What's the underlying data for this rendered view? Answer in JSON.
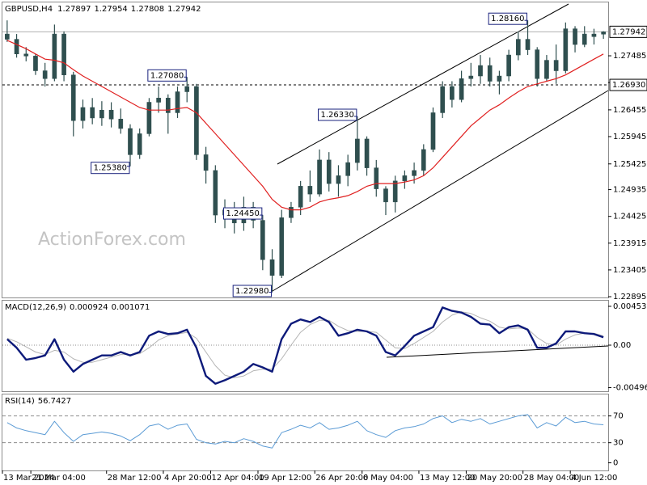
{
  "chart_data": [
    {
      "type": "candlestick",
      "title": "GBPUSD,H4",
      "watermark": "ActionForex.com",
      "color": "#2f4f4f",
      "categories": [
        "13 Mar 2024",
        null,
        null,
        "21 Mar 04:00",
        null,
        null,
        null,
        null,
        null,
        null,
        null,
        "28 Mar 12:00",
        null,
        null,
        null,
        null,
        null,
        "4 Apr 20:00",
        null,
        null,
        null,
        null,
        "12 Apr 04:00",
        null,
        null,
        null,
        null,
        "19 Apr 12:00",
        null,
        null,
        null,
        null,
        null,
        "26 Apr 20:00",
        null,
        null,
        null,
        null,
        "6 May 04:00",
        null,
        null,
        null,
        null,
        null,
        "13 May 12:00",
        null,
        null,
        null,
        null,
        "20 May 20:00",
        null,
        null,
        null,
        null,
        null,
        "28 May 04:00",
        null,
        null,
        null,
        null,
        "4 Jun 12:00",
        null,
        null,
        null
      ],
      "open": [
        1.279,
        1.278,
        1.2752,
        1.2748,
        1.272,
        1.2705,
        1.279,
        1.2712,
        1.2625,
        1.265,
        1.263,
        1.2645,
        1.2628,
        1.261,
        1.256,
        1.26,
        1.266,
        1.2668,
        1.264,
        1.268,
        1.269,
        1.256,
        1.253,
        1.2445,
        1.2455,
        1.243,
        1.246,
        1.2435,
        1.236,
        1.233,
        1.244,
        1.246,
        1.25,
        1.2485,
        1.255,
        1.2505,
        1.252,
        1.2545,
        1.259,
        1.2535,
        1.2495,
        1.247,
        1.251,
        1.252,
        1.253,
        1.257,
        1.264,
        1.269,
        1.2665,
        1.2705,
        1.271,
        1.273,
        1.27,
        1.271,
        1.275,
        1.278,
        1.276,
        1.2705,
        1.274,
        1.272,
        1.28,
        1.277,
        1.279,
        1.27897
      ],
      "high": [
        1.2816,
        1.279,
        1.2765,
        1.2752,
        1.2735,
        1.2808,
        1.2795,
        1.2718,
        1.2665,
        1.2668,
        1.2662,
        1.266,
        1.2648,
        1.2618,
        1.261,
        1.2668,
        1.269,
        1.2675,
        1.269,
        1.2708,
        1.2695,
        1.2575,
        1.254,
        1.2475,
        1.247,
        1.248,
        1.247,
        1.2445,
        1.238,
        1.2455,
        1.247,
        1.251,
        1.253,
        1.257,
        1.2565,
        1.254,
        1.256,
        1.2633,
        1.2595,
        1.255,
        1.25,
        1.252,
        1.253,
        1.2545,
        1.258,
        1.265,
        1.27,
        1.27,
        1.272,
        1.2735,
        1.275,
        1.2745,
        1.272,
        1.276,
        1.2795,
        1.2816,
        1.2765,
        1.275,
        1.277,
        1.2812,
        1.2805,
        1.2805,
        1.28,
        1.27954
      ],
      "low": [
        1.2775,
        1.2745,
        1.2738,
        1.2712,
        1.269,
        1.27,
        1.27,
        1.2595,
        1.261,
        1.2618,
        1.2615,
        1.2612,
        1.26,
        1.2538,
        1.2552,
        1.2595,
        1.264,
        1.26,
        1.263,
        1.266,
        1.255,
        1.2505,
        1.243,
        1.242,
        1.241,
        1.2415,
        1.242,
        1.234,
        1.2298,
        1.2325,
        1.243,
        1.2445,
        1.247,
        1.248,
        1.249,
        1.248,
        1.25,
        1.253,
        1.252,
        1.248,
        1.2445,
        1.245,
        1.2495,
        1.2505,
        1.252,
        1.2565,
        1.263,
        1.265,
        1.266,
        1.269,
        1.2695,
        1.269,
        1.2675,
        1.27,
        1.274,
        1.275,
        1.269,
        1.27,
        1.2695,
        1.2715,
        1.2755,
        1.2765,
        1.277,
        1.27808
      ],
      "close": [
        1.278,
        1.2752,
        1.2748,
        1.272,
        1.2705,
        1.279,
        1.2712,
        1.2625,
        1.265,
        1.263,
        1.2645,
        1.2628,
        1.261,
        1.256,
        1.26,
        1.266,
        1.2668,
        1.264,
        1.268,
        1.269,
        1.256,
        1.253,
        1.2445,
        1.2455,
        1.243,
        1.246,
        1.2435,
        1.236,
        1.233,
        1.244,
        1.246,
        1.25,
        1.2485,
        1.255,
        1.2505,
        1.252,
        1.2545,
        1.259,
        1.2535,
        1.2495,
        1.247,
        1.251,
        1.252,
        1.253,
        1.257,
        1.264,
        1.269,
        1.2665,
        1.2705,
        1.271,
        1.273,
        1.27,
        1.271,
        1.275,
        1.278,
        1.276,
        1.2705,
        1.274,
        1.272,
        1.28,
        1.277,
        1.279,
        1.2785,
        1.27942
      ],
      "moving_average": {
        "color": "#e02020",
        "values": [
          1.2778,
          1.277,
          1.2762,
          1.2752,
          1.2742,
          1.274,
          1.2735,
          1.2722,
          1.271,
          1.27,
          1.269,
          1.268,
          1.267,
          1.266,
          1.265,
          1.2645,
          1.2645,
          1.2645,
          1.2648,
          1.265,
          1.264,
          1.262,
          1.26,
          1.258,
          1.256,
          1.254,
          1.252,
          1.25,
          1.2475,
          1.246,
          1.2455,
          1.2455,
          1.246,
          1.247,
          1.2475,
          1.2478,
          1.2482,
          1.249,
          1.25,
          1.2505,
          1.2505,
          1.2505,
          1.2508,
          1.2512,
          1.252,
          1.2535,
          1.2555,
          1.2575,
          1.2595,
          1.2615,
          1.263,
          1.2645,
          1.2655,
          1.2668,
          1.268,
          1.269,
          1.2695,
          1.27,
          1.2705,
          1.2712,
          1.2722,
          1.2732,
          1.2742,
          1.2752
        ]
      },
      "levels": [
        {
          "value": 1.2693,
          "label": "1.26930"
        }
      ],
      "annotations": [
        {
          "value": 1.2816,
          "label": "1.28160"
        },
        {
          "value": 1.2708,
          "label": "1.27080"
        },
        {
          "value": 1.2538,
          "label": "1.25380"
        },
        {
          "value": 1.2633,
          "label": "1.26330"
        },
        {
          "value": 1.2445,
          "label": "1.24450"
        },
        {
          "value": 1.2298,
          "label": "1.22980"
        }
      ],
      "ylim": [
        1.2288,
        1.28502
      ],
      "yticks": [
        1.27485,
        1.26975,
        1.26455,
        1.25945,
        1.25425,
        1.24935,
        1.24425,
        1.23915,
        1.23405,
        1.22895
      ]
    },
    {
      "type": "line",
      "title": "MACD(12,26,9)",
      "series": [
        {
          "color": "#0d1a7a",
          "values": [
            0.0007,
            -0.0003,
            -0.0017,
            -0.0015,
            -0.0012,
            0.0007,
            -0.0017,
            -0.0031,
            -0.0022,
            -0.0017,
            -0.0012,
            -0.0012,
            -0.0008,
            -0.0012,
            -0.0008,
            0.0011,
            0.0016,
            0.0013,
            0.0014,
            0.0018,
            -0.0003,
            -0.0036,
            -0.0045,
            -0.0041,
            -0.0036,
            -0.0031,
            -0.0022,
            -0.0026,
            -0.0031,
            0.0007,
            0.0025,
            0.003,
            0.0027,
            0.0033,
            0.0027,
            0.0011,
            0.0014,
            0.0018,
            0.0016,
            0.0011,
            -0.0008,
            -0.0012,
            -0.0001,
            0.0011,
            0.0016,
            0.0021,
            0.0044,
            0.004,
            0.0038,
            0.0033,
            0.0025,
            0.0024,
            0.0014,
            0.0021,
            0.0023,
            0.0018,
            -0.0003,
            -0.0003,
            0.0002,
            0.0016,
            0.0016,
            0.0014,
            0.0013,
            0.000924
          ]
        },
        {
          "color": "#b4b4b4",
          "values": [
            0.0008,
            0.0004,
            -0.0002,
            -0.0008,
            -0.0011,
            -0.0006,
            -0.0008,
            -0.0016,
            -0.002,
            -0.002,
            -0.0017,
            -0.0014,
            -0.0011,
            -0.0011,
            -0.001,
            -0.0003,
            0.0006,
            0.0011,
            0.0013,
            0.0015,
            0.0008,
            -0.0008,
            -0.0024,
            -0.0035,
            -0.0038,
            -0.0036,
            -0.003,
            -0.0028,
            -0.0028,
            -0.0016,
            0,
            0.0015,
            0.0024,
            0.0029,
            0.0029,
            0.0022,
            0.0017,
            0.0016,
            0.0016,
            0.0015,
            0.0006,
            -0.0003,
            -0.0004,
            0.0002,
            0.0009,
            0.0016,
            0.0027,
            0.0035,
            0.0039,
            0.0037,
            0.0032,
            0.0028,
            0.0021,
            0.0019,
            0.002,
            0.0019,
            0.0009,
            0.0002,
            0,
            0.0007,
            0.0012,
            0.0014,
            0.0014,
            0.001071
          ]
        }
      ],
      "reference_lines": [
        0
      ],
      "ylim": [
        -0.00538,
        0.00519
      ],
      "yticks": [
        0.004533,
        {
          "value": 0,
          "label": "0.00"
        },
        -0.00496
      ]
    },
    {
      "type": "line",
      "title": "RSI(14)",
      "series": [
        {
          "color": "#5b9bd5",
          "values": [
            60,
            52,
            48,
            45,
            42,
            62,
            45,
            32,
            42,
            44,
            46,
            44,
            40,
            33,
            42,
            55,
            58,
            50,
            56,
            58,
            35,
            30,
            28,
            32,
            30,
            36,
            32,
            25,
            22,
            45,
            50,
            56,
            52,
            60,
            50,
            52,
            56,
            62,
            48,
            42,
            38,
            48,
            52,
            54,
            58,
            66,
            70,
            60,
            65,
            62,
            66,
            58,
            62,
            66,
            70,
            72,
            52,
            60,
            55,
            68,
            60,
            62,
            58,
            56.7427
          ]
        }
      ],
      "reference_lines": [
        70,
        30
      ],
      "ylim": [
        -11.4,
        102
      ],
      "yticks": [
        70,
        30,
        0
      ]
    }
  ]
}
